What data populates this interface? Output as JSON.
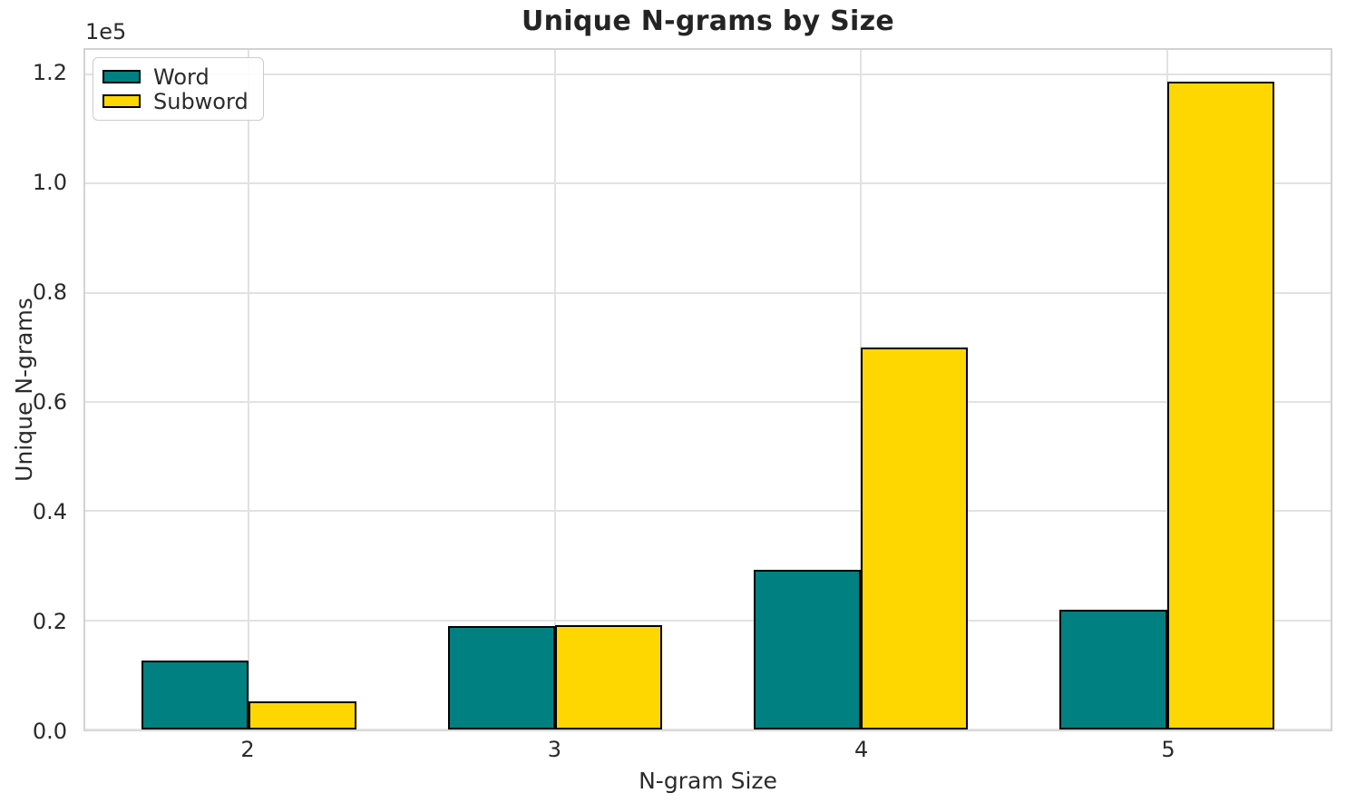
{
  "chart_data": {
    "type": "bar",
    "title": "Unique N-grams by Size",
    "xlabel": "N-gram Size",
    "ylabel": "Unique N-grams",
    "y_scale_label": "1e5",
    "categories": [
      "2",
      "3",
      "4",
      "5"
    ],
    "series": [
      {
        "name": "Word",
        "color": "#008080",
        "values": [
          12700,
          19000,
          29300,
          22000
        ]
      },
      {
        "name": "Subword",
        "color": "#FFD700",
        "values": [
          5100,
          19200,
          69900,
          118700
        ]
      }
    ],
    "y_ticks": [
      {
        "label": "0.0",
        "value": 0
      },
      {
        "label": "0.2",
        "value": 20000
      },
      {
        "label": "0.4",
        "value": 40000
      },
      {
        "label": "0.6",
        "value": 60000
      },
      {
        "label": "0.8",
        "value": 80000
      },
      {
        "label": "1.0",
        "value": 100000
      },
      {
        "label": "1.2",
        "value": 120000
      }
    ],
    "ylim": [
      0,
      124500
    ],
    "bar_width": 0.35,
    "grid": true,
    "legend_position": "upper left",
    "bar_edge_color": "#000000",
    "grid_color": "#e2e2e2",
    "spine_color": "#d2d2d2",
    "text_color": "#2b2b2b"
  }
}
